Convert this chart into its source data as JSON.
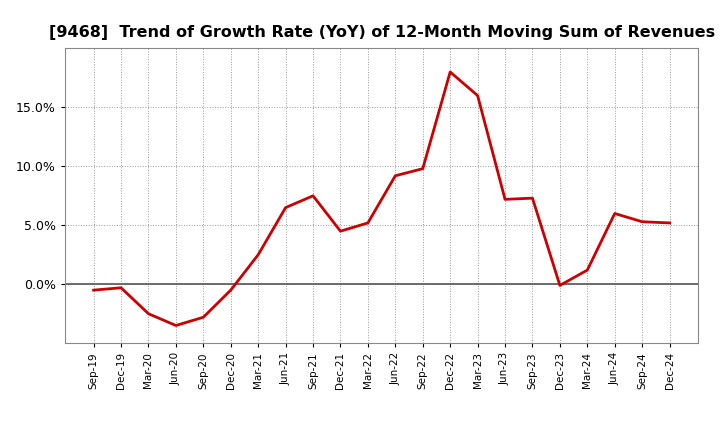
{
  "title": "[9468]  Trend of Growth Rate (YoY) of 12-Month Moving Sum of Revenues",
  "title_fontsize": 11.5,
  "line_color": "#cc0000",
  "line_width": 2.0,
  "background_color": "#ffffff",
  "plot_bg_color": "#ffffff",
  "grid_color": "#999999",
  "zero_line_color": "#555555",
  "border_color": "#888888",
  "labels": [
    "Sep-19",
    "Dec-19",
    "Mar-20",
    "Jun-20",
    "Sep-20",
    "Dec-20",
    "Mar-21",
    "Jun-21",
    "Sep-21",
    "Dec-21",
    "Mar-22",
    "Jun-22",
    "Sep-22",
    "Dec-22",
    "Mar-23",
    "Jun-23",
    "Sep-23",
    "Dec-23",
    "Mar-24",
    "Jun-24",
    "Sep-24",
    "Dec-24"
  ],
  "values": [
    -0.5,
    -0.3,
    -2.5,
    -3.5,
    -2.8,
    -0.5,
    2.5,
    6.5,
    7.5,
    4.5,
    5.2,
    9.2,
    9.8,
    18.0,
    16.0,
    7.2,
    7.3,
    -0.1,
    1.2,
    6.0,
    5.3,
    5.2
  ],
  "ylim": [
    -5.0,
    20.0
  ],
  "yticks": [
    0.0,
    5.0,
    10.0,
    15.0
  ],
  "figsize": [
    7.2,
    4.4
  ],
  "dpi": 100
}
